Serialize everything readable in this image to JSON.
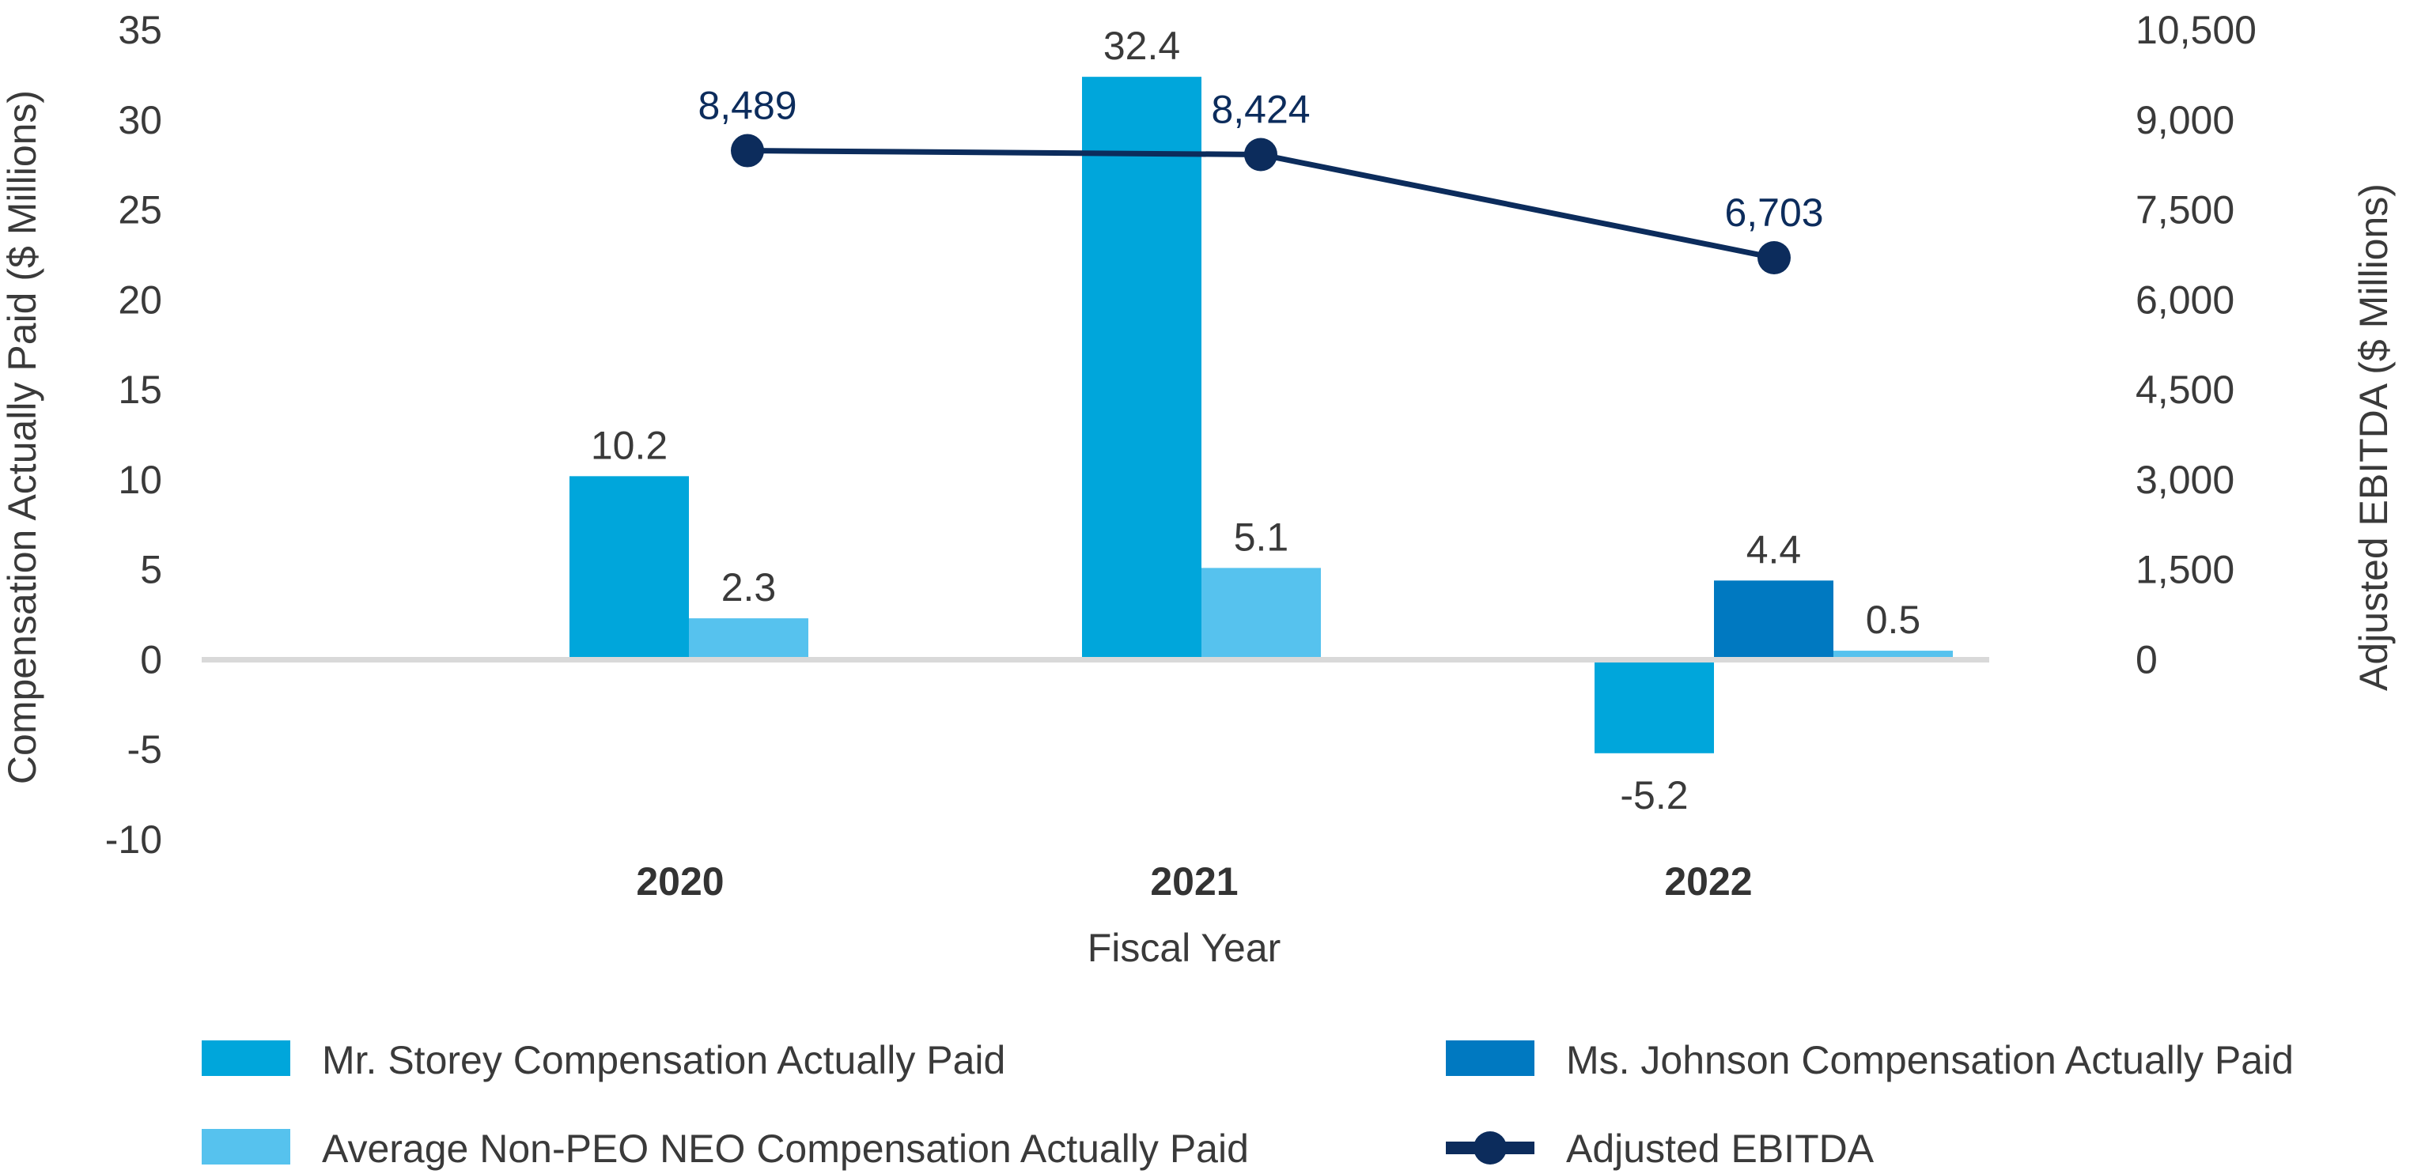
{
  "chart_data": {
    "type": "bar",
    "title": "",
    "categories": [
      "2020",
      "2021",
      "2022"
    ],
    "xlabel": "Fiscal Year",
    "ylabel": "Compensation Actually Paid ($ Millions)",
    "y2label": "Adjusted EBITDA ($ Millions)",
    "ylim": [
      -10,
      35
    ],
    "y_ticks": [
      "-10",
      "-5",
      "0",
      "5",
      "10",
      "15",
      "20",
      "25",
      "30",
      "35"
    ],
    "y2lim": [
      0,
      10500
    ],
    "y2_ticks": [
      "0",
      "1,500",
      "3,000",
      "4,500",
      "6,000",
      "7,500",
      "9,000",
      "10,500"
    ],
    "series": [
      {
        "name": "Mr. Storey Compensation Actually Paid",
        "kind": "bar",
        "color": "#00a6db",
        "values": [
          10.2,
          32.4,
          -5.2
        ],
        "labels": [
          "10.2",
          "32.4",
          "-5.2"
        ]
      },
      {
        "name": "Ms. Johnson Compensation Actually Paid",
        "kind": "bar",
        "color": "#0079c1",
        "values": [
          null,
          null,
          4.4
        ],
        "labels": [
          "",
          "",
          "4.4"
        ]
      },
      {
        "name": "Average Non-PEO NEO Compensation Actually Paid",
        "kind": "bar",
        "color": "#56c2ee",
        "values": [
          2.3,
          5.1,
          0.5
        ],
        "labels": [
          "2.3",
          "5.1",
          "0.5"
        ]
      },
      {
        "name": "Adjusted EBITDA",
        "kind": "line",
        "axis": "right",
        "color": "#0c2c5c",
        "values": [
          8489,
          8424,
          6703
        ],
        "labels": [
          "8,489",
          "8,424",
          "6,703"
        ]
      }
    ],
    "legend": {
      "position": "bottom",
      "items": [
        {
          "label": "Mr. Storey Compensation Actually Paid",
          "color": "#00a6db",
          "shape": "box"
        },
        {
          "label": "Ms. Johnson Compensation Actually Paid",
          "color": "#0079c1",
          "shape": "box"
        },
        {
          "label": "Average Non-PEO NEO Compensation Actually Paid",
          "color": "#56c2ee",
          "shape": "box"
        },
        {
          "label": "Adjusted EBITDA",
          "color": "#0c2c5c",
          "shape": "line-marker"
        }
      ]
    }
  }
}
